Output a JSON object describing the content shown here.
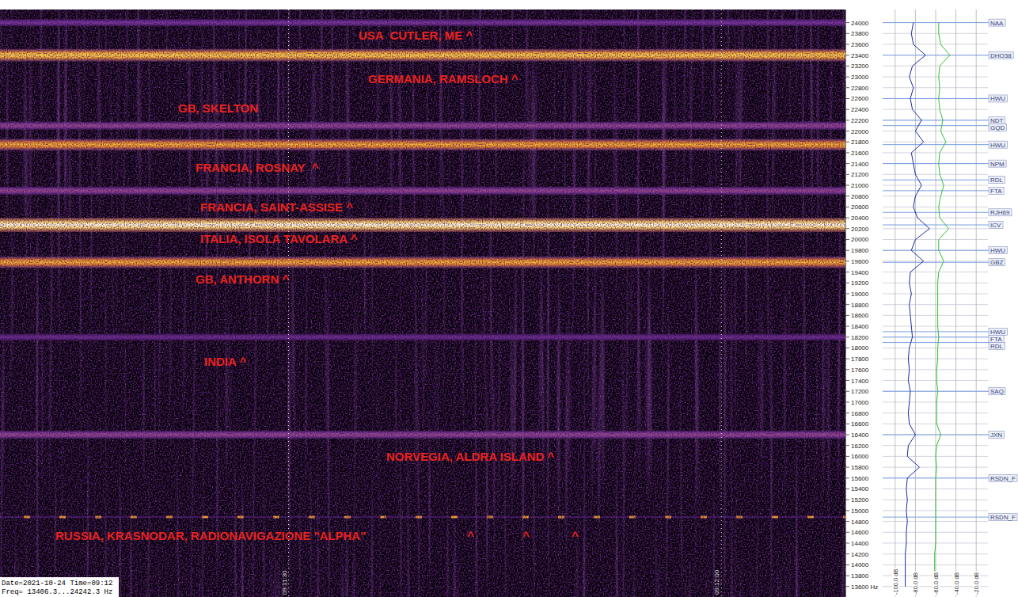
{
  "chart_data": {
    "type": "spectrogram",
    "xlim": [
      33070,
      33128.6
    ],
    "xticks": [
      {
        "value": 33090,
        "label": "09:11:30"
      },
      {
        "value": 33120,
        "label": "09:12:00"
      }
    ],
    "ylim": [
      13406.3,
      24242.3
    ],
    "yticks": [
      {
        "value": 13600,
        "label": "13600 Hz"
      },
      13800,
      14000,
      14200,
      14400,
      14600,
      14800,
      15000,
      15200,
      15400,
      15600,
      15800,
      16000,
      16200,
      16400,
      16600,
      16800,
      17000,
      17200,
      17400,
      17600,
      17800,
      18000,
      18200,
      18400,
      18600,
      18800,
      19000,
      19200,
      19400,
      19600,
      19800,
      20000,
      20200,
      20400,
      20600,
      20800,
      21000,
      21200,
      21400,
      21600,
      21800,
      22000,
      22200,
      22400,
      22600,
      22800,
      23000,
      23200,
      23400,
      23600,
      23800,
      24000
    ],
    "grid": true,
    "signals": [
      {
        "label": "USA  CUTLER, ME ^",
        "frequency": 24000,
        "line_style": "solid"
      },
      {
        "label": "GERMANIA, RAMSLOCH ^",
        "frequency": 23400,
        "line_style": "solid"
      },
      {
        "label": "GB, SKELTON",
        "frequency": 22100,
        "line_style": "solid"
      },
      {
        "label": "FRANCIA, ROSNAY  ^",
        "frequency": 21750,
        "line_style": "solid"
      },
      {
        "label": "FRANCIA, SAINT-ASSISE ^",
        "frequency": 20900,
        "line_style": "solid"
      },
      {
        "label": "ITALIA, ISOLA TAVOLARA ^",
        "frequency": 20270,
        "line_style": "solid"
      },
      {
        "label": "GB, ANTHORN ^",
        "frequency": 19580,
        "line_style": "solid"
      },
      {
        "label": "INDIA ^",
        "frequency": 18200,
        "line_style": "solid"
      },
      {
        "label": "NORVEGIA, ALDRA ISLAND ^",
        "frequency": 16400,
        "line_style": "solid"
      },
      {
        "label": "RUSSIA, KRASNODAR, RADIONAVIGAZIONE \"ALPHA\"",
        "frequency": 14880,
        "line_style": "dashed",
        "carets": [
          "^",
          "^",
          "^"
        ]
      }
    ],
    "info": [
      "Date=2021-10-24 Time=09:12",
      "Freq= 13406.3...24242.3 Hz"
    ],
    "spectrum": {
      "type": "line",
      "xlim": [
        -110,
        -10
      ],
      "xticks": [
        {
          "value": -100,
          "label": "-100.0 dB"
        },
        {
          "value": -80,
          "label": "-80.0 dB"
        },
        {
          "value": -60,
          "label": "-60.0 dB"
        },
        {
          "value": -40,
          "label": "-40.0 dB"
        },
        {
          "value": -20,
          "label": "-20.0 dB"
        }
      ],
      "frequencies": [
        13600,
        13800,
        14000,
        14200,
        14400,
        14600,
        14800,
        15000,
        15200,
        15400,
        15600,
        15800,
        16000,
        16200,
        16400,
        16600,
        16800,
        17000,
        17200,
        17400,
        17600,
        17800,
        18000,
        18200,
        18400,
        18600,
        18800,
        19000,
        19200,
        19400,
        19600,
        19800,
        20000,
        20200,
        20400,
        20600,
        20800,
        21000,
        21200,
        21400,
        21600,
        21800,
        22000,
        22200,
        22400,
        22600,
        22800,
        23000,
        23200,
        23400,
        23600,
        23800,
        24000
      ],
      "series": [
        {
          "color": "#1a2aa0",
          "values": [
            -90,
            -90,
            -90,
            -90,
            -89,
            -89,
            -88,
            -89,
            -88,
            -89,
            -88,
            -76,
            -88,
            -87,
            -80,
            -86,
            -87,
            -86,
            -85,
            -87,
            -86,
            -87,
            -86,
            -83,
            -84,
            -85,
            -86,
            -84,
            -86,
            -85,
            -72,
            -84,
            -80,
            -66,
            -78,
            -82,
            -80,
            -74,
            -80,
            -82,
            -84,
            -72,
            -80,
            -74,
            -83,
            -85,
            -82,
            -86,
            -83,
            -70,
            -82,
            -84,
            -82
          ]
        },
        {
          "color": "#30c030",
          "values": [
            -61,
            -61,
            -61,
            -61,
            -60,
            -60,
            -60,
            -60,
            -60,
            -60,
            -60,
            -59,
            -60,
            -59,
            -55,
            -59,
            -59,
            -59,
            -58,
            -59,
            -59,
            -58,
            -58,
            -57,
            -58,
            -58,
            -58,
            -58,
            -58,
            -57,
            -52,
            -57,
            -57,
            -47,
            -56,
            -57,
            -55,
            -52,
            -56,
            -57,
            -56,
            -50,
            -55,
            -53,
            -56,
            -57,
            -56,
            -57,
            -56,
            -46,
            -55,
            -57,
            -57
          ]
        }
      ],
      "markers": [
        {
          "label": "NAA",
          "frequency": 24000
        },
        {
          "label": "DHO38",
          "frequency": 23400
        },
        {
          "label": "HWU",
          "frequency": 22600
        },
        {
          "label": "NDT",
          "frequency": 22200
        },
        {
          "label": "GQD",
          "frequency": 22100
        },
        {
          "label": "HWU",
          "frequency": 21750
        },
        {
          "label": "NPM",
          "frequency": 21400
        },
        {
          "label": "RDL",
          "frequency": 21100
        },
        {
          "label": "FTA",
          "frequency": 20900
        },
        {
          "label": "RJH69",
          "frequency": 20500
        },
        {
          "label": "ICV",
          "frequency": 20270
        },
        {
          "label": "HWU",
          "frequency": 19800
        },
        {
          "label": "GBZ",
          "frequency": 19580
        },
        {
          "label": "HWU",
          "frequency": 18300
        },
        {
          "label": "FTA",
          "frequency": 18200
        },
        {
          "label": "RDL",
          "frequency": 18100
        },
        {
          "label": "SAQ",
          "frequency": 17200
        },
        {
          "label": "JXN",
          "frequency": 16400
        },
        {
          "label": "RSDN_F",
          "frequency": 15600
        },
        {
          "label": "RSDN_F",
          "frequency": 14880
        }
      ]
    }
  }
}
